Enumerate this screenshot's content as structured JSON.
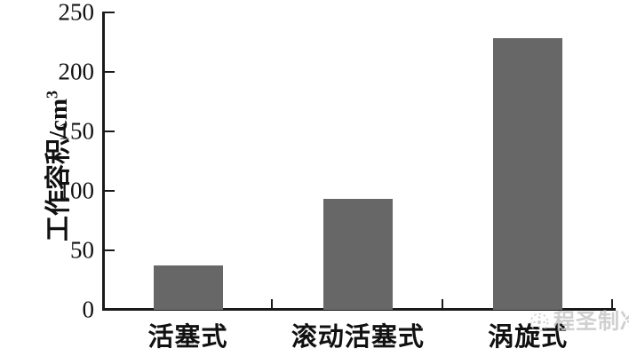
{
  "chart_data": {
    "type": "bar",
    "categories": [
      "活塞式",
      "滚动活塞式",
      "涡旋式"
    ],
    "values": [
      37,
      93,
      228
    ],
    "title": "",
    "xlabel": "",
    "ylabel": "工作容积/cm³",
    "ylabel_base": "工作容积/cm",
    "ylabel_superscript": "3",
    "yticks": [
      0,
      50,
      100,
      150,
      200,
      250
    ],
    "ylim": [
      0,
      250
    ],
    "grid": false,
    "legend_position": "none",
    "bar_color": "#676767",
    "axis_color": "#1a1a1a",
    "tick_direction": "inward"
  },
  "watermark": {
    "logo_icon": "snowflake-circle-icon",
    "text": "程圣制冷",
    "color": "#c7c7c7"
  }
}
